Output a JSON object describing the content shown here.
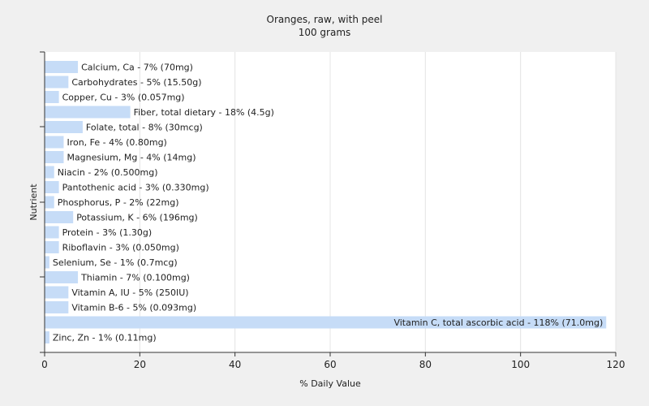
{
  "chart_data": {
    "type": "bar",
    "orientation": "horizontal",
    "title": "Oranges, raw, with peel",
    "subtitle": "100 grams",
    "xlabel": "% Daily Value",
    "ylabel": "Nutrient",
    "xlim": [
      0,
      120
    ],
    "xticks": [
      "0",
      "20",
      "40",
      "60",
      "80",
      "100",
      "120"
    ],
    "grid": true,
    "bar_color": "#c6dcf7",
    "categories": [
      "Calcium, Ca - 7% (70mg)",
      "Carbohydrates - 5% (15.50g)",
      "Copper, Cu - 3% (0.057mg)",
      "Fiber, total dietary - 18% (4.5g)",
      "Folate, total - 8% (30mcg)",
      "Iron, Fe - 4% (0.80mg)",
      "Magnesium, Mg - 4% (14mg)",
      "Niacin - 2% (0.500mg)",
      "Pantothenic acid - 3% (0.330mg)",
      "Phosphorus, P - 2% (22mg)",
      "Potassium, K - 6% (196mg)",
      "Protein - 3% (1.30g)",
      "Riboflavin - 3% (0.050mg)",
      "Selenium, Se - 1% (0.7mcg)",
      "Thiamin - 7% (0.100mg)",
      "Vitamin A, IU - 5% (250IU)",
      "Vitamin B-6 - 5% (0.093mg)",
      "Vitamin C, total ascorbic acid - 118% (71.0mg)",
      "Zinc, Zn - 1% (0.11mg)"
    ],
    "values": [
      7,
      5,
      3,
      18,
      8,
      4,
      4,
      2,
      3,
      2,
      6,
      3,
      3,
      1,
      7,
      5,
      5,
      118,
      1
    ]
  }
}
